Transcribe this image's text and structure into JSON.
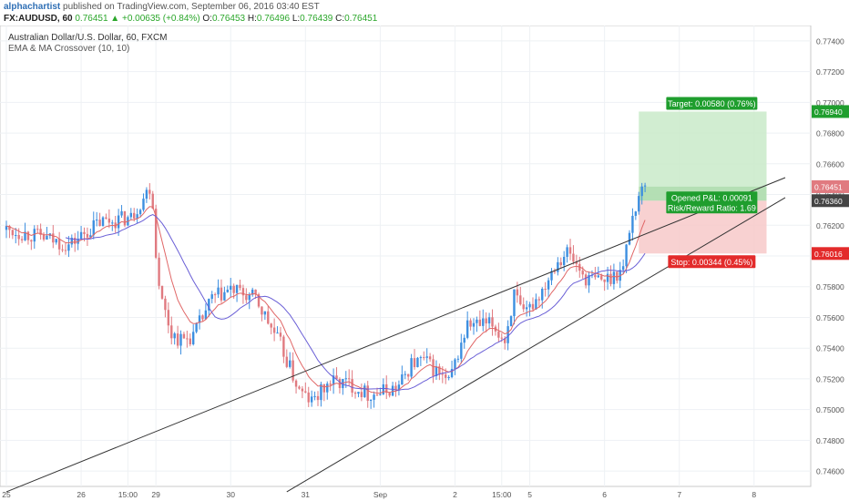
{
  "header": {
    "author": "alphachartist",
    "published": "published on TradingView.com, September 06, 2016 03:40 EST",
    "symbol": "FX:AUDUSD, 60",
    "price": "0.76451",
    "change": "+0.00635 (+0.84%)",
    "o_label": "O:",
    "o_val": "0.76453",
    "h_label": "H:",
    "h_val": "0.76496",
    "l_label": "L:",
    "l_val": "0.76439",
    "c_label": "C:",
    "c_val": "0.76451"
  },
  "legend": {
    "title": "Australian Dollar/U.S. Dollar, 60, FXCM",
    "indicator": "EMA & MA Crossover (10, 10)"
  },
  "colors": {
    "up_candle": "#3d8fe0",
    "down_candle": "#e07a80",
    "ema": "#e06666",
    "ma": "#6a5fd6",
    "target_zone": "#c9eac9",
    "stop_zone": "#f7c9c9",
    "target_label": "#1f9e2e",
    "stop_label": "#e32b2b",
    "channel": "#333333"
  },
  "chart_data": {
    "type": "candlestick",
    "y_ticks": [
      "0.74600",
      "0.74800",
      "0.75000",
      "0.75200",
      "0.75400",
      "0.75600",
      "0.75800",
      "0.76000",
      "0.76200",
      "0.76400",
      "0.76600",
      "0.76800",
      "0.77000",
      "0.77200",
      "0.77400"
    ],
    "ylim": [
      0.745,
      0.775
    ],
    "x_ticks": [
      {
        "label": "25",
        "bar": 0
      },
      {
        "label": "26",
        "bar": 24
      },
      {
        "label": "15:00",
        "bar": 39
      },
      {
        "label": "29",
        "bar": 48
      },
      {
        "label": "30",
        "bar": 72
      },
      {
        "label": "31",
        "bar": 96
      },
      {
        "label": "Sep",
        "bar": 120
      },
      {
        "label": "2",
        "bar": 144
      },
      {
        "label": "15:00",
        "bar": 159
      },
      {
        "label": "5",
        "bar": 168
      },
      {
        "label": "6",
        "bar": 192
      },
      {
        "label": "7",
        "bar": 216
      },
      {
        "label": "8",
        "bar": 240
      }
    ],
    "trend_anchors": [
      [
        0,
        0.7617
      ],
      [
        10,
        0.7613
      ],
      [
        20,
        0.7607
      ],
      [
        30,
        0.7622
      ],
      [
        40,
        0.7625
      ],
      [
        44,
        0.7638
      ],
      [
        46,
        0.7645
      ],
      [
        47,
        0.7634
      ],
      [
        48,
        0.76
      ],
      [
        50,
        0.757
      ],
      [
        53,
        0.755
      ],
      [
        56,
        0.7545
      ],
      [
        60,
        0.7548
      ],
      [
        66,
        0.7572
      ],
      [
        72,
        0.7578
      ],
      [
        80,
        0.7572
      ],
      [
        88,
        0.7542
      ],
      [
        94,
        0.7512
      ],
      [
        98,
        0.7505
      ],
      [
        104,
        0.7518
      ],
      [
        110,
        0.7517
      ],
      [
        116,
        0.751
      ],
      [
        120,
        0.7511
      ],
      [
        126,
        0.7515
      ],
      [
        130,
        0.753
      ],
      [
        134,
        0.7532
      ],
      [
        138,
        0.7525
      ],
      [
        142,
        0.7517
      ],
      [
        144,
        0.753
      ],
      [
        148,
        0.7555
      ],
      [
        156,
        0.7555
      ],
      [
        160,
        0.7545
      ],
      [
        163,
        0.7575
      ],
      [
        166,
        0.756
      ],
      [
        172,
        0.7578
      ],
      [
        176,
        0.7595
      ],
      [
        180,
        0.7603
      ],
      [
        186,
        0.7585
      ],
      [
        192,
        0.7584
      ],
      [
        198,
        0.7592
      ],
      [
        200,
        0.7618
      ],
      [
        203,
        0.764
      ],
      [
        205,
        0.7645
      ]
    ],
    "candle_count": 206,
    "ema_period": 10,
    "ma_period": 10,
    "channel_upper": {
      "p1": {
        "bar": 0,
        "price": 0.74465
      },
      "p2": {
        "bar": 250,
        "price": 0.7651
      }
    },
    "channel_lower": {
      "p1": {
        "bar": 90,
        "price": 0.74465
      },
      "p2": {
        "bar": 250,
        "price": 0.7638
      }
    },
    "position": {
      "entry": 0.7636,
      "target_price": 0.7694,
      "stop_price": 0.76016,
      "start_bar": 203,
      "end_bar": 244,
      "target_text": "Target: 0.00580 (0.76%)",
      "stop_text": "Stop: 0.00344 (0.45%)",
      "pnl_text": "Opened P&L: 0.00091",
      "rr_text": "Risk/Reward Ratio: 1.69"
    },
    "price_labels": {
      "target": "0.76940",
      "last": "0.76451",
      "entry": "0.76360",
      "stop": "0.76016"
    },
    "title": "Australian Dollar/U.S. Dollar, 60, FXCM"
  }
}
